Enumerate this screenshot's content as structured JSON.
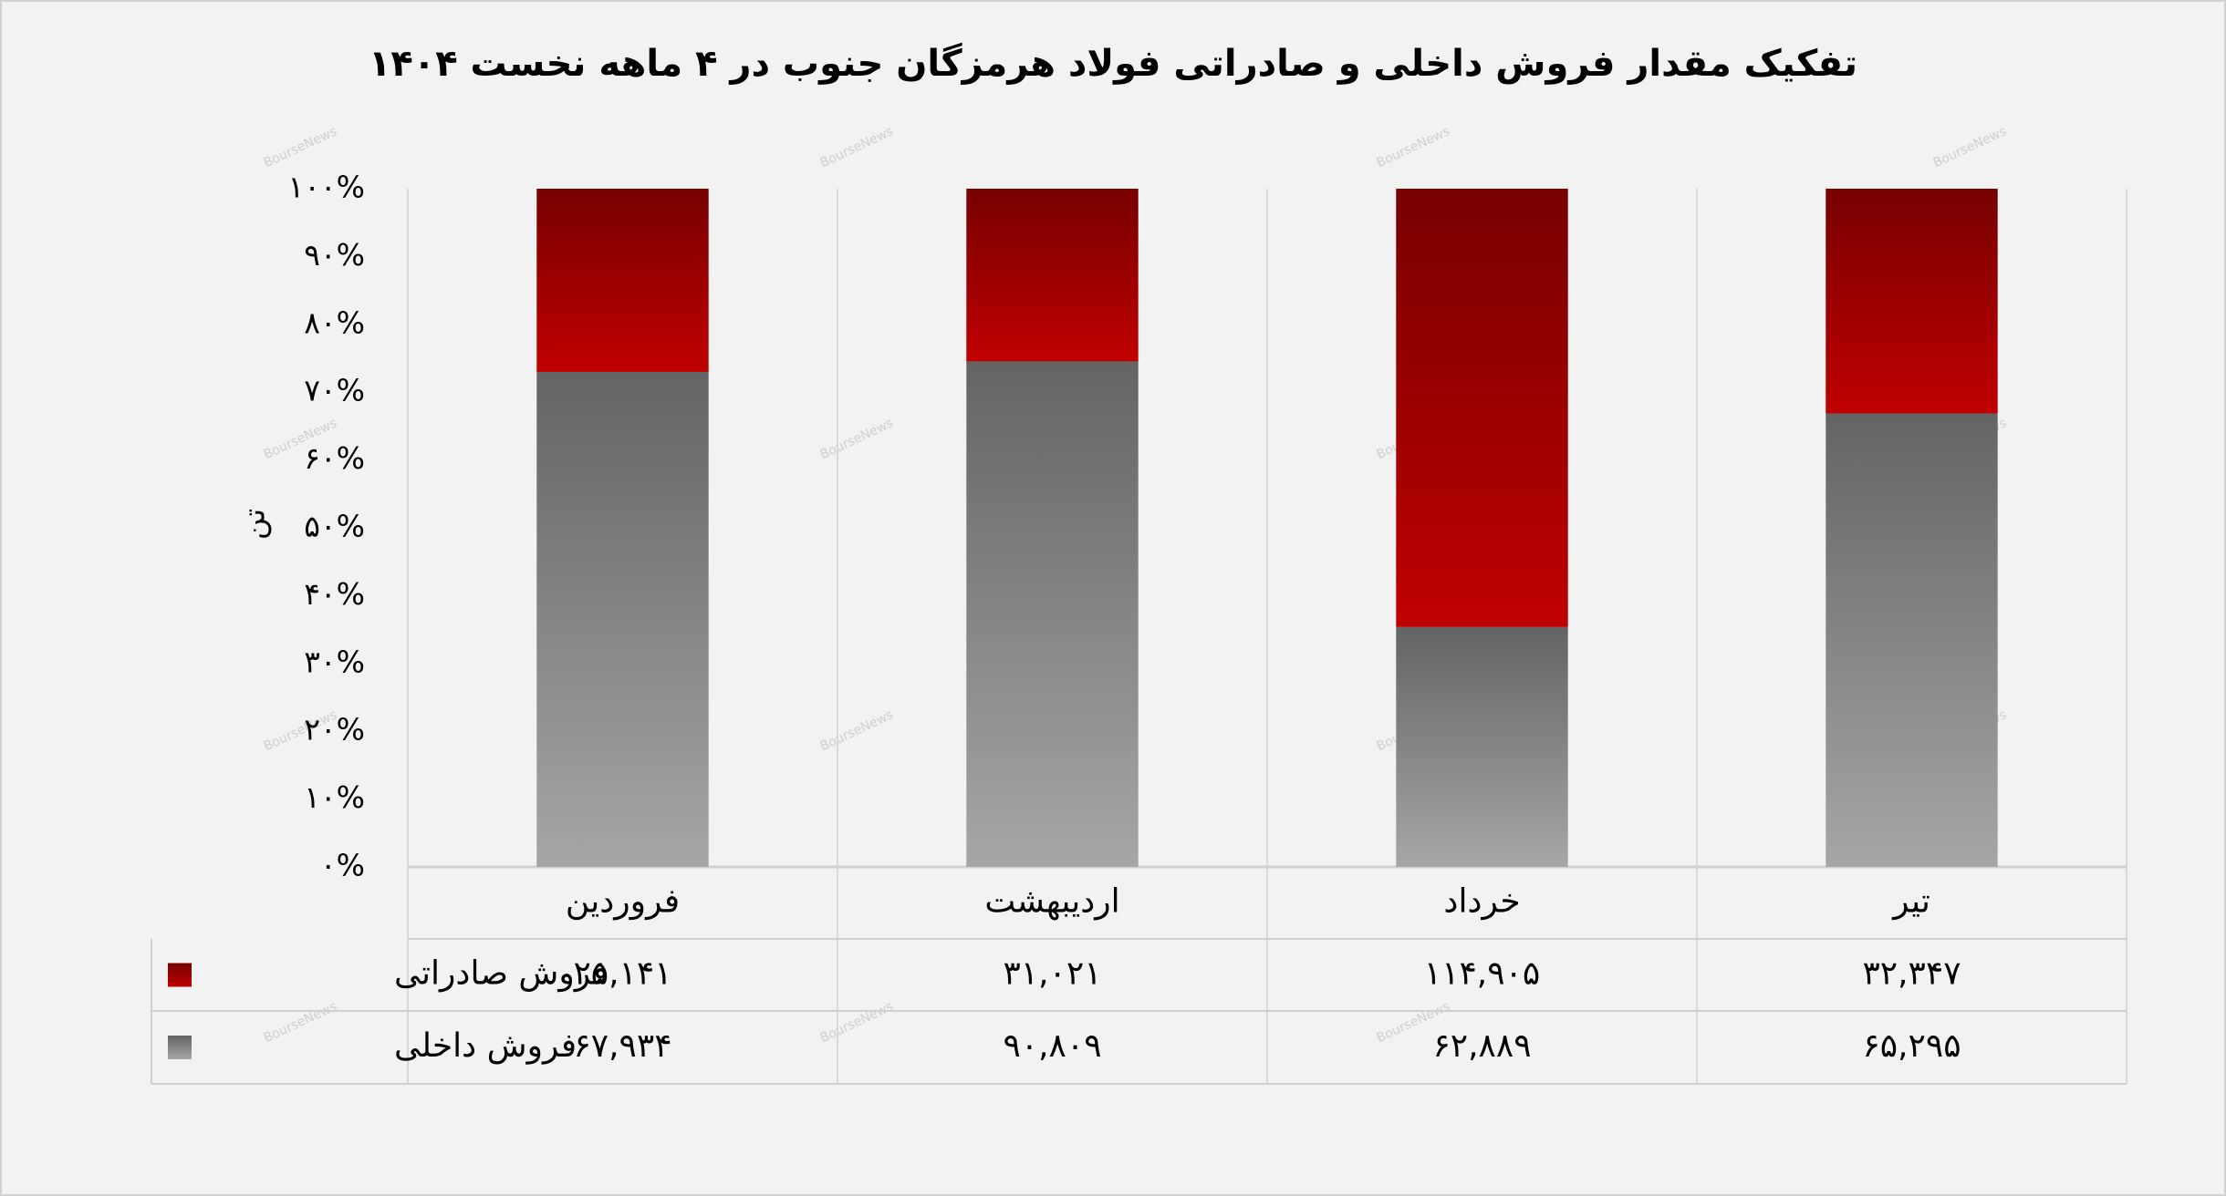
{
  "chart_data": {
    "type": "bar",
    "stacking": "percent",
    "title": "تفکیک مقدار فروش داخلی و صادراتی فولاد هرمزگان جنوب در ۴ ماهه نخست ۱۴۰۴",
    "y_label": "تن",
    "watermark": "BourseNews",
    "categories": [
      "فروردین",
      "اردیبهشت",
      "خرداد",
      "تیر"
    ],
    "series": [
      {
        "name": "فروش صادراتی",
        "color": "#c00000",
        "values": [
          25141,
          31021,
          114905,
          32347
        ],
        "value_labels": [
          "۲۵,۱۴۱",
          "۳۱,۰۲۱",
          "۱۱۴,۹۰۵",
          "۳۲,۳۴۷"
        ]
      },
      {
        "name": "فروش داخلی",
        "color": "#808080",
        "values": [
          67934,
          90809,
          62889,
          65295
        ],
        "value_labels": [
          "۶۷,۹۳۴",
          "۹۰,۸۰۹",
          "۶۲,۸۸۹",
          "۶۵,۲۹۵"
        ]
      }
    ],
    "ylim": [
      0,
      100
    ],
    "yticks": [
      {
        "value": 0,
        "label": "۰%"
      },
      {
        "value": 10,
        "label": "۱۰%"
      },
      {
        "value": 20,
        "label": "۲۰%"
      },
      {
        "value": 30,
        "label": "۳۰%"
      },
      {
        "value": 40,
        "label": "۴۰%"
      },
      {
        "value": 50,
        "label": "۵۰%"
      },
      {
        "value": 60,
        "label": "۶۰%"
      },
      {
        "value": 70,
        "label": "۷۰%"
      },
      {
        "value": 80,
        "label": "۸۰%"
      },
      {
        "value": 90,
        "label": "۹۰%"
      },
      {
        "value": 100,
        "label": "۱۰۰%"
      }
    ],
    "grid": false
  }
}
